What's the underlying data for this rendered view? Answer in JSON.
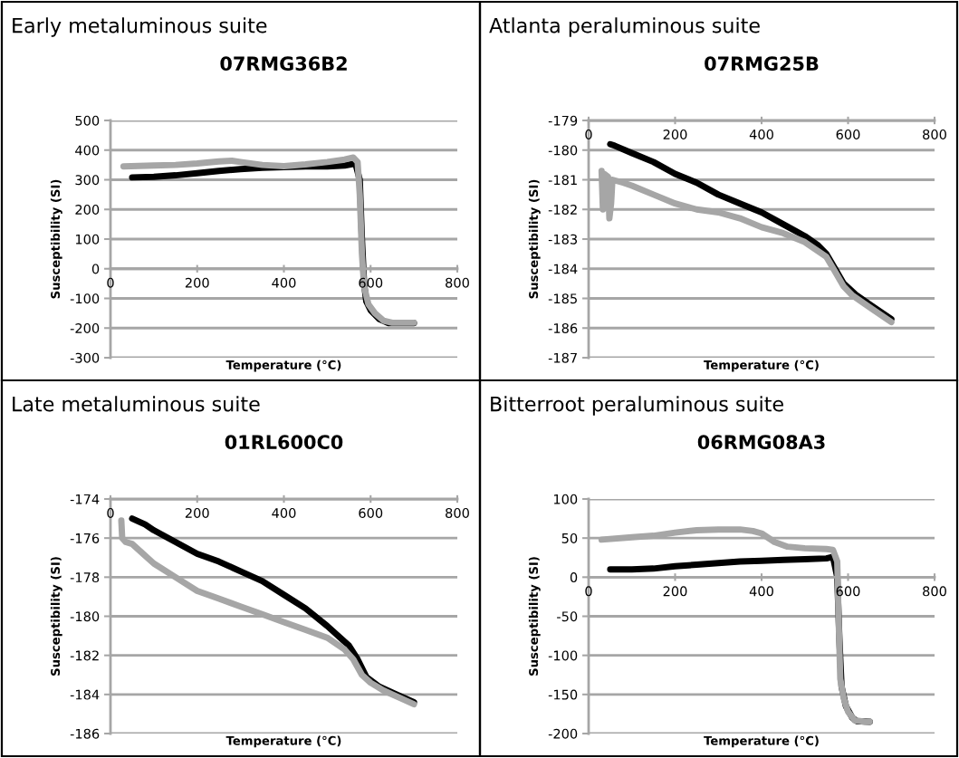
{
  "chart_data": [
    {
      "type": "line",
      "title": "Early metaluminous suite",
      "subtitle": "07RMG36B2",
      "xlabel": "Temperature (°C)",
      "ylabel": "Susceptibility (SI)",
      "xlim": [
        0,
        800
      ],
      "xticks": [
        0,
        200,
        400,
        600,
        800
      ],
      "ylim": [
        -300,
        500
      ],
      "yticks": [
        -300,
        -200,
        -100,
        0,
        100,
        200,
        300,
        400,
        500
      ],
      "grid": "y",
      "line_style": "solid",
      "series": [
        {
          "color": "#000000",
          "x": [
            50,
            100,
            150,
            200,
            250,
            300,
            350,
            400,
            450,
            500,
            540,
            565,
            575,
            580,
            585,
            590,
            600,
            620,
            640,
            700
          ],
          "values": [
            308,
            310,
            315,
            322,
            330,
            336,
            340,
            343,
            345,
            345,
            348,
            355,
            300,
            100,
            -50,
            -110,
            -140,
            -170,
            -183,
            -183
          ]
        },
        {
          "color": "#a6a6a6",
          "x": [
            30,
            100,
            150,
            200,
            250,
            280,
            300,
            350,
            400,
            450,
            500,
            540,
            560,
            570,
            575,
            580,
            585,
            595,
            610,
            630,
            650,
            700
          ],
          "values": [
            345,
            348,
            350,
            355,
            362,
            364,
            360,
            350,
            346,
            352,
            360,
            368,
            375,
            360,
            250,
            50,
            -60,
            -120,
            -150,
            -175,
            -182,
            -182
          ]
        }
      ]
    },
    {
      "type": "line",
      "title": "Atlanta peraluminous suite",
      "subtitle": "07RMG25B",
      "xlabel": "Temperature (°C)",
      "ylabel": "Susceptibility (SI)",
      "xlim": [
        0,
        800
      ],
      "xticks": [
        0,
        200,
        400,
        600,
        800
      ],
      "ylim": [
        -187,
        -179
      ],
      "yticks": [
        -187,
        -186,
        -185,
        -184,
        -183,
        -182,
        -181,
        -180,
        -179
      ],
      "grid": "y",
      "line_style": "solid",
      "series": [
        {
          "color": "#000000",
          "x": [
            50,
            60,
            100,
            150,
            200,
            250,
            300,
            350,
            400,
            450,
            500,
            530,
            550,
            570,
            590,
            620,
            650,
            680,
            700
          ],
          "values": [
            -179.8,
            -179.85,
            -180.1,
            -180.4,
            -180.8,
            -181.1,
            -181.5,
            -181.8,
            -182.1,
            -182.5,
            -182.9,
            -183.2,
            -183.5,
            -184.0,
            -184.5,
            -184.9,
            -185.2,
            -185.5,
            -185.7
          ]
        },
        {
          "color": "#a6a6a6",
          "x": [
            30,
            33,
            36,
            45,
            48,
            52,
            55,
            80,
            100,
            150,
            200,
            250,
            300,
            350,
            400,
            450,
            500,
            530,
            550,
            570,
            590,
            610,
            650,
            700
          ],
          "values": [
            -180.7,
            -182.0,
            -180.8,
            -180.9,
            -182.3,
            -181.8,
            -181.0,
            -181.1,
            -181.2,
            -181.5,
            -181.8,
            -182.0,
            -182.1,
            -182.3,
            -182.6,
            -182.8,
            -183.1,
            -183.4,
            -183.6,
            -184.1,
            -184.6,
            -184.9,
            -185.3,
            -185.8
          ]
        }
      ]
    },
    {
      "type": "line",
      "title": "Late metaluminous suite",
      "subtitle": "01RL600C0",
      "xlabel": "Temperature (°C)",
      "ylabel": "Susceptibility (SI)",
      "xlim": [
        0,
        800
      ],
      "xticks": [
        0,
        200,
        400,
        600,
        800
      ],
      "ylim": [
        -186,
        -174
      ],
      "yticks": [
        -186,
        -184,
        -182,
        -180,
        -178,
        -176,
        -174
      ],
      "grid": "y",
      "line_style": "solid",
      "series": [
        {
          "color": "#000000",
          "x": [
            50,
            80,
            100,
            150,
            200,
            250,
            300,
            350,
            400,
            450,
            500,
            550,
            570,
            590,
            620,
            660,
            700
          ],
          "values": [
            -175.0,
            -175.3,
            -175.6,
            -176.2,
            -176.8,
            -177.2,
            -177.7,
            -178.2,
            -178.9,
            -179.6,
            -180.5,
            -181.5,
            -182.2,
            -183.1,
            -183.6,
            -184.0,
            -184.4
          ]
        },
        {
          "color": "#a6a6a6",
          "x": [
            25,
            27,
            35,
            50,
            80,
            100,
            150,
            200,
            250,
            300,
            350,
            400,
            450,
            500,
            540,
            560,
            580,
            600,
            630,
            670,
            700
          ],
          "values": [
            -175.1,
            -176.0,
            -176.2,
            -176.3,
            -176.9,
            -177.3,
            -178.0,
            -178.7,
            -179.1,
            -179.5,
            -179.9,
            -180.3,
            -180.7,
            -181.1,
            -181.7,
            -182.2,
            -183.0,
            -183.4,
            -183.8,
            -184.2,
            -184.5
          ]
        }
      ]
    },
    {
      "type": "line",
      "title": "Bitterroot peraluminous suite",
      "subtitle": "06RMG08A3",
      "xlabel": "Temperature (°C)",
      "ylabel": "Susceptibility (SI)",
      "xlim": [
        0,
        800
      ],
      "xticks": [
        0,
        200,
        400,
        600,
        800
      ],
      "ylim": [
        -200,
        100
      ],
      "yticks": [
        -200,
        -150,
        -100,
        -50,
        0,
        50,
        100
      ],
      "grid": "y",
      "line_style": "solid",
      "series": [
        {
          "color": "#000000",
          "x": [
            50,
            100,
            150,
            200,
            250,
            300,
            350,
            400,
            450,
            500,
            550,
            565,
            575,
            580,
            585,
            595,
            610,
            620,
            650
          ],
          "values": [
            10,
            10,
            11,
            14,
            16,
            18,
            20,
            21,
            22,
            23,
            24,
            26,
            0,
            -80,
            -140,
            -165,
            -180,
            -184,
            -185
          ]
        },
        {
          "color": "#a6a6a6",
          "x": [
            30,
            100,
            150,
            200,
            250,
            300,
            350,
            380,
            400,
            430,
            460,
            500,
            550,
            565,
            575,
            578,
            582,
            590,
            600,
            615,
            640,
            650
          ],
          "values": [
            48,
            51,
            53,
            57,
            60,
            61,
            61,
            59,
            56,
            45,
            39,
            37,
            36,
            35,
            20,
            -50,
            -130,
            -155,
            -172,
            -183,
            -185,
            -185
          ]
        }
      ]
    }
  ]
}
